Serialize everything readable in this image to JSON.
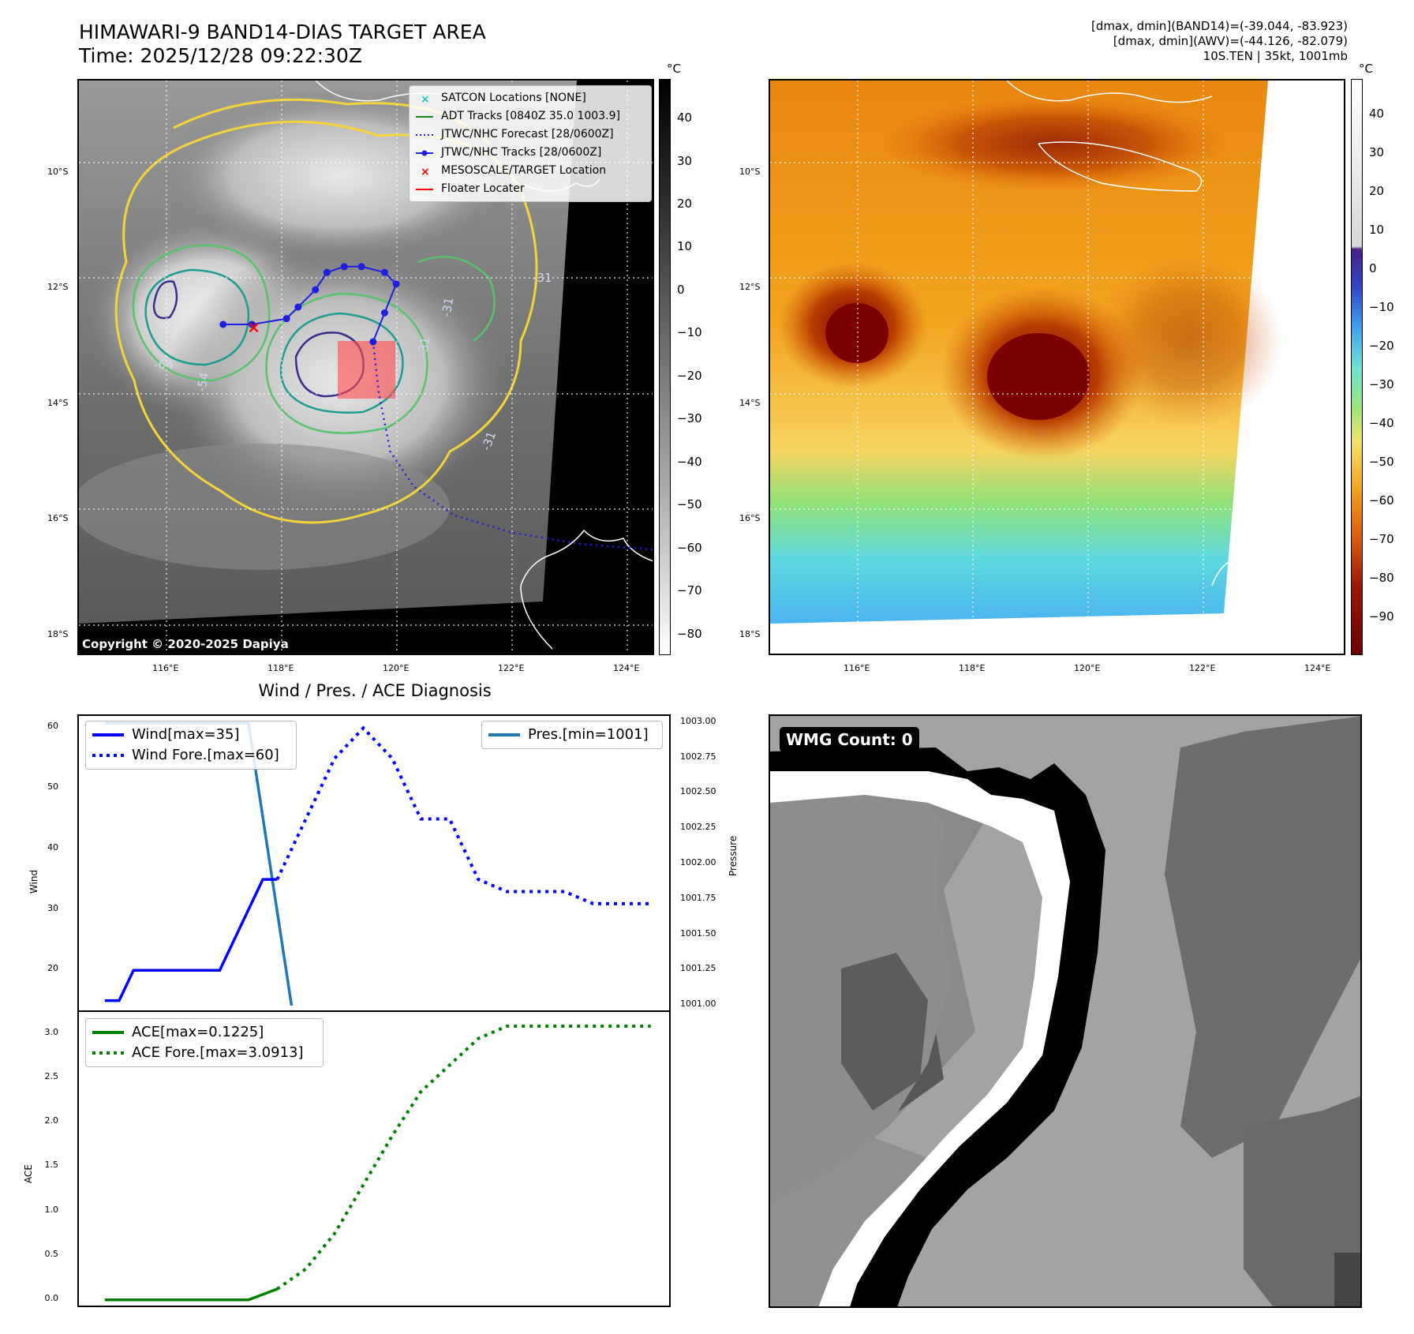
{
  "header": {
    "title_line1": "HIMAWARI-9 BAND14-DIAS TARGET AREA",
    "title_line2": "Time: 2025/12/28 09:22:30Z",
    "right_line1": "[dmax, dmin](BAND14)=(-39.044, -83.923)",
    "right_line2": "[dmax, dmin](AWV)=(-44.126, -82.079)",
    "right_line3": "10S.TEN | 35kt, 1001mb"
  },
  "map_left": {
    "lat_labels": [
      "10°S",
      "12°S",
      "14°S",
      "16°S",
      "18°S"
    ],
    "lon_labels": [
      "116°E",
      "118°E",
      "120°E",
      "122°E",
      "124°E"
    ],
    "copyright": "Copyright © 2020-2025 Dapiya",
    "legend": [
      {
        "label": "SATCON Locations [NONE]",
        "color": "#22c4c4",
        "kind": "x"
      },
      {
        "label": "ADT Tracks [0840Z 35.0 1003.9]",
        "color": "#138a13",
        "kind": "line"
      },
      {
        "label": "JTWC/NHC Forecast [28/0600Z]",
        "color": "#1f1fe0",
        "kind": "dotted"
      },
      {
        "label": "JTWC/NHC Tracks [28/0600Z]",
        "color": "#1f1fe0",
        "kind": "line-dot"
      },
      {
        "label": "MESOSCALE/TARGET Location",
        "color": "#ff0000",
        "kind": "x"
      },
      {
        "label": "Floater Locater",
        "color": "#ff0000",
        "kind": "line"
      }
    ],
    "contour_labels": [
      "-64",
      "-54",
      "-31",
      "-31",
      "-31",
      "-31"
    ],
    "colorbar": {
      "unit": "°C",
      "ticks": [
        "40",
        "30",
        "20",
        "10",
        "0",
        "−10",
        "−20",
        "−30",
        "−40",
        "−50",
        "−60",
        "−70",
        "−80"
      ]
    },
    "track_points": [
      [
        117.0,
        -12.8
      ],
      [
        117.5,
        -12.8
      ],
      [
        118.1,
        -12.7
      ],
      [
        118.3,
        -12.5
      ],
      [
        118.6,
        -12.2
      ],
      [
        118.8,
        -11.9
      ],
      [
        119.1,
        -11.8
      ],
      [
        119.4,
        -11.8
      ],
      [
        119.8,
        -11.9
      ],
      [
        120.0,
        -12.1
      ],
      [
        119.8,
        -12.6
      ],
      [
        119.6,
        -13.1
      ]
    ],
    "forecast_points": [
      [
        119.6,
        -13.1
      ],
      [
        119.7,
        -14.0
      ],
      [
        119.9,
        -15.0
      ],
      [
        120.3,
        -15.6
      ],
      [
        121.0,
        -16.1
      ],
      [
        122.0,
        -16.4
      ],
      [
        123.2,
        -16.6
      ],
      [
        124.5,
        -16.7
      ]
    ],
    "target_location": [
      117.5,
      -12.85
    ]
  },
  "map_right": {
    "lat_labels": [
      "10°S",
      "12°S",
      "14°S",
      "16°S",
      "18°S"
    ],
    "lon_labels": [
      "116°E",
      "118°E",
      "120°E",
      "122°E",
      "124°E"
    ],
    "colorbar": {
      "unit": "°C",
      "ticks": [
        "40",
        "30",
        "20",
        "10",
        "0",
        "−10",
        "−20",
        "−30",
        "−40",
        "−50",
        "−60",
        "−70",
        "−80",
        "−90"
      ]
    }
  },
  "diag": {
    "title": "Wind / Pres. / ACE Diagnosis",
    "ylabel_wind": "Wind",
    "ylabel_pres": "Pressure",
    "ylabel_ace": "ACE",
    "wind_ticks": [
      "60",
      "50",
      "40",
      "30",
      "20"
    ],
    "pres_ticks": [
      "1003.00",
      "1002.75",
      "1002.50",
      "1002.25",
      "1002.00",
      "1001.75",
      "1001.50",
      "1001.25",
      "1001.00"
    ],
    "ace_ticks": [
      "3.0",
      "2.5",
      "2.0",
      "1.5",
      "1.0",
      "0.5",
      "0.0"
    ],
    "legend_wind": "Wind[max=35]",
    "legend_wind_fore": "Wind Fore.[max=60]",
    "legend_pres": "Pres.[min=1001]",
    "legend_ace": "ACE[max=0.1225]",
    "legend_ace_fore": "ACE Fore.[max=3.0913]"
  },
  "chart_data": [
    {
      "type": "line",
      "title": "Wind / Pres. / ACE Diagnosis",
      "ylabel": "Wind",
      "ylim": [
        13,
        62
      ],
      "x": [
        0,
        1,
        2,
        3,
        4,
        5,
        6,
        7,
        8,
        9,
        10,
        11,
        12
      ],
      "series": [
        {
          "name": "Wind[max=35]",
          "x": [
            0,
            1,
            2,
            3,
            4,
            5,
            6,
            7,
            8,
            9,
            10,
            11,
            12
          ],
          "values": [
            15,
            15,
            20,
            20,
            20,
            20,
            20,
            20,
            20,
            25,
            30,
            35,
            35
          ]
        },
        {
          "name": "Wind Fore.[max=60]",
          "x": [
            12,
            14,
            16,
            18,
            20,
            22,
            24,
            26,
            28,
            30,
            32,
            34,
            36,
            38
          ],
          "values": [
            35,
            45,
            55,
            60,
            55,
            45,
            45,
            35,
            33,
            33,
            33,
            31,
            31,
            31
          ]
        }
      ]
    },
    {
      "type": "line",
      "ylabel": "Pressure",
      "ylim": [
        1000.95,
        1003.05
      ],
      "series": [
        {
          "name": "Pres.[min=1001]",
          "x": [
            0,
            9,
            10,
            11.5,
            13
          ],
          "values": [
            1003.0,
            1003.0,
            1003.0,
            1002.0,
            1001.0
          ]
        }
      ]
    },
    {
      "type": "line",
      "ylabel": "ACE",
      "ylim": [
        -0.1,
        3.25
      ],
      "series": [
        {
          "name": "ACE[max=0.1225]",
          "x": [
            0,
            2,
            4,
            6,
            8,
            10,
            12
          ],
          "values": [
            0.0,
            0.0,
            0.0,
            0.0,
            0.0,
            0.0,
            0.1225
          ]
        },
        {
          "name": "ACE Fore.[max=3.0913]",
          "x": [
            12,
            14,
            16,
            18,
            20,
            22,
            24,
            26,
            28,
            30,
            32,
            34,
            36,
            38
          ],
          "values": [
            0.1225,
            0.35,
            0.75,
            1.3,
            1.85,
            2.35,
            2.65,
            2.95,
            3.09,
            3.09,
            3.09,
            3.09,
            3.09,
            3.09
          ]
        }
      ]
    }
  ],
  "wmg": {
    "label": "WMG Count: 0"
  }
}
